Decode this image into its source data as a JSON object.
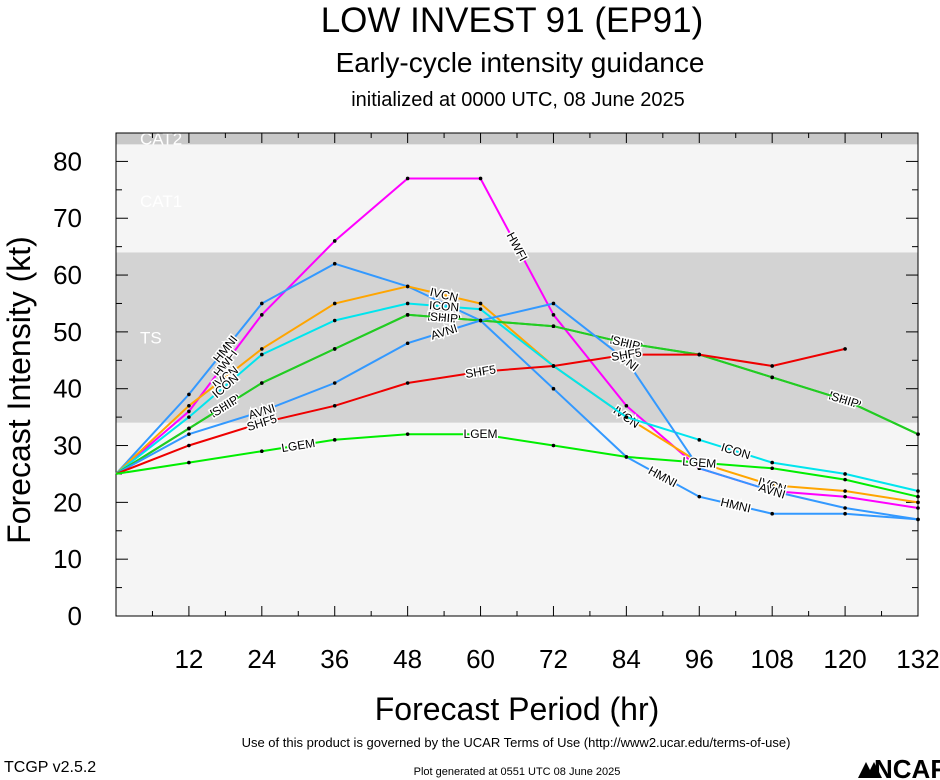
{
  "header": {
    "title": "LOW INVEST 91 (EP91)",
    "subtitle": "Early-cycle intensity guidance",
    "initialized": "initialized at 0000 UTC, 08 June 2025"
  },
  "footer": {
    "terms": "Use of this product is governed by the UCAR Terms of Use (http://www2.ucar.edu/terms-of-use)",
    "generated": "Plot generated at 0551 UTC   08 June 2025",
    "version": "TCGP v2.5.2",
    "logo_text": "NCAR"
  },
  "chart_data": {
    "type": "line",
    "xlabel": "Forecast Period (hr)",
    "ylabel": "Forecast Intensity (kt)",
    "xlim": [
      0,
      132
    ],
    "ylim": [
      0,
      85
    ],
    "x_ticks": [
      12,
      24,
      36,
      48,
      60,
      72,
      84,
      96,
      108,
      120,
      132
    ],
    "y_ticks": [
      0,
      10,
      20,
      30,
      40,
      50,
      60,
      70,
      80
    ],
    "bands": [
      {
        "label": "TS",
        "from": 34,
        "to": 64,
        "color": "#d3d3d3"
      },
      {
        "label": "CAT1",
        "from": 64,
        "to": 83,
        "color": "#f5f5f5"
      },
      {
        "label": "CAT2",
        "from": 83,
        "to": 85,
        "color": "#c8c8c8"
      },
      {
        "label": "",
        "from": 0,
        "to": 34,
        "color": "#f5f5f5"
      }
    ],
    "series": [
      {
        "name": "HWFI",
        "color": "#ff00ff",
        "points": [
          [
            0,
            25
          ],
          [
            12,
            36
          ],
          [
            24,
            53
          ],
          [
            36,
            66
          ],
          [
            48,
            77
          ],
          [
            60,
            77
          ],
          [
            72,
            53
          ],
          [
            84,
            37
          ],
          [
            96,
            26
          ],
          [
            108,
            22
          ],
          [
            120,
            21
          ],
          [
            132,
            19
          ]
        ]
      },
      {
        "name": "HMNI",
        "color": "#3399ff",
        "points": [
          [
            0,
            25
          ],
          [
            12,
            39
          ],
          [
            24,
            55
          ],
          [
            36,
            62
          ],
          [
            48,
            58
          ],
          [
            60,
            52
          ],
          [
            72,
            40
          ],
          [
            84,
            28
          ],
          [
            96,
            21
          ],
          [
            108,
            18
          ],
          [
            120,
            18
          ],
          [
            132,
            17
          ]
        ]
      },
      {
        "name": "IVCN",
        "color": "#ffa500",
        "points": [
          [
            0,
            25
          ],
          [
            12,
            37
          ],
          [
            24,
            47
          ],
          [
            36,
            55
          ],
          [
            48,
            58
          ],
          [
            60,
            55
          ],
          [
            72,
            44
          ],
          [
            84,
            35
          ],
          [
            96,
            27
          ],
          [
            108,
            23
          ],
          [
            120,
            22
          ],
          [
            132,
            20
          ]
        ]
      },
      {
        "name": "ICON",
        "color": "#00e5ee",
        "points": [
          [
            0,
            25
          ],
          [
            12,
            35
          ],
          [
            24,
            46
          ],
          [
            36,
            52
          ],
          [
            48,
            55
          ],
          [
            60,
            54
          ],
          [
            72,
            44
          ],
          [
            84,
            35
          ],
          [
            96,
            31
          ],
          [
            108,
            27
          ],
          [
            120,
            25
          ],
          [
            132,
            22
          ]
        ]
      },
      {
        "name": "DSHP",
        "color": "#22cc22",
        "points": [
          [
            0,
            25
          ],
          [
            12,
            33
          ],
          [
            24,
            41
          ],
          [
            36,
            47
          ],
          [
            48,
            53
          ],
          [
            60,
            52
          ],
          [
            72,
            51
          ],
          [
            84,
            48
          ],
          [
            96,
            46
          ],
          [
            108,
            42
          ],
          [
            120,
            38
          ],
          [
            132,
            32
          ]
        ]
      },
      {
        "name": "SHIP",
        "color": "#22cc22",
        "points": [
          [
            0,
            25
          ],
          [
            12,
            33
          ],
          [
            24,
            41
          ],
          [
            36,
            47
          ],
          [
            48,
            53
          ],
          [
            60,
            52
          ],
          [
            72,
            51
          ],
          [
            84,
            48
          ],
          [
            96,
            46
          ],
          [
            108,
            42
          ],
          [
            120,
            38
          ],
          [
            132,
            32
          ]
        ]
      },
      {
        "name": "AVNI",
        "color": "#3399ff",
        "points": [
          [
            0,
            25
          ],
          [
            12,
            32
          ],
          [
            24,
            36
          ],
          [
            36,
            41
          ],
          [
            48,
            48
          ],
          [
            60,
            52
          ],
          [
            72,
            55
          ],
          [
            84,
            45
          ],
          [
            96,
            26
          ],
          [
            108,
            22
          ],
          [
            120,
            19
          ],
          [
            132,
            17
          ]
        ]
      },
      {
        "name": "SHF5",
        "color": "#ee0000",
        "points": [
          [
            0,
            25
          ],
          [
            12,
            30
          ],
          [
            24,
            34
          ],
          [
            36,
            37
          ],
          [
            48,
            41
          ],
          [
            60,
            43
          ],
          [
            72,
            44
          ],
          [
            84,
            46
          ],
          [
            96,
            46
          ],
          [
            108,
            44
          ],
          [
            120,
            47
          ]
        ]
      },
      {
        "name": "LGEM",
        "color": "#00ee00",
        "points": [
          [
            0,
            25
          ],
          [
            12,
            27
          ],
          [
            24,
            29
          ],
          [
            36,
            31
          ],
          [
            48,
            32
          ],
          [
            60,
            32
          ],
          [
            72,
            30
          ],
          [
            84,
            28
          ],
          [
            96,
            27
          ],
          [
            108,
            26
          ],
          [
            120,
            24
          ],
          [
            132,
            21
          ]
        ]
      }
    ]
  }
}
